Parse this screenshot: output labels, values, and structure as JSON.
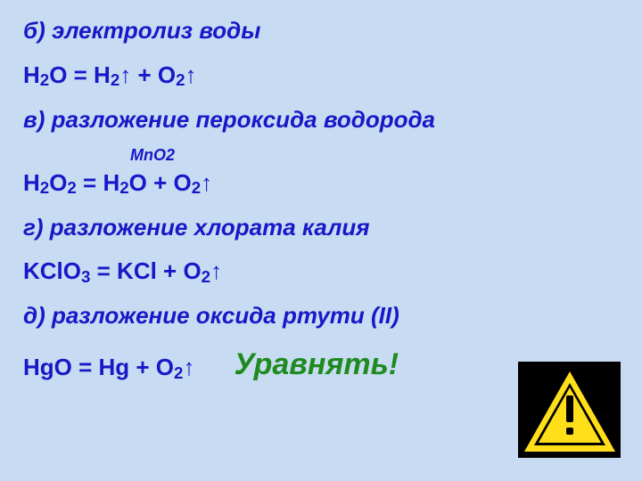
{
  "colors": {
    "background": "#c7dcf2",
    "text_primary": "#1818c8",
    "callout": "#1f8a1f",
    "warn_yellow": "#ffde1a",
    "warn_black": "#000000"
  },
  "typography": {
    "body_fontsize_pt": 20,
    "body_weight": "bold",
    "catalyst_fontsize_pt": 13,
    "callout_fontsize_pt": 26,
    "font_family": "Arial"
  },
  "lines": {
    "b_title": "б) электролиз воды",
    "b_formula": "H",
    "b_formula_sub1": "2",
    "b_formula_mid": "O   =   H",
    "b_formula_sub2": "2",
    "b_formula_tail": "↑   +   O",
    "b_formula_sub3": "2",
    "b_formula_end": "↑",
    "c_title": "в) разложение пероксида водорода",
    "catalyst": "MnO2",
    "c_formula_a": "H",
    "c_formula_s1": "2",
    "c_formula_b": "O",
    "c_formula_s2": "2",
    "c_formula_c": "   =   H",
    "c_formula_s3": "2",
    "c_formula_d": "O   +   O",
    "c_formula_s4": "2",
    "c_formula_e": "↑",
    "g_title": "г) разложение хлората калия",
    "g_formula_a": "KClO",
    "g_formula_s1": "3",
    "g_formula_b": "   =   KCl   +   O",
    "g_formula_s2": "2",
    "g_formula_c": "↑",
    "d_title": "д) разложение оксида ртути (II)",
    "d_formula_a": "HgO   =   Hg   +   O",
    "d_formula_s1": "2",
    "d_formula_b": "↑",
    "callout": "Уравнять!"
  }
}
